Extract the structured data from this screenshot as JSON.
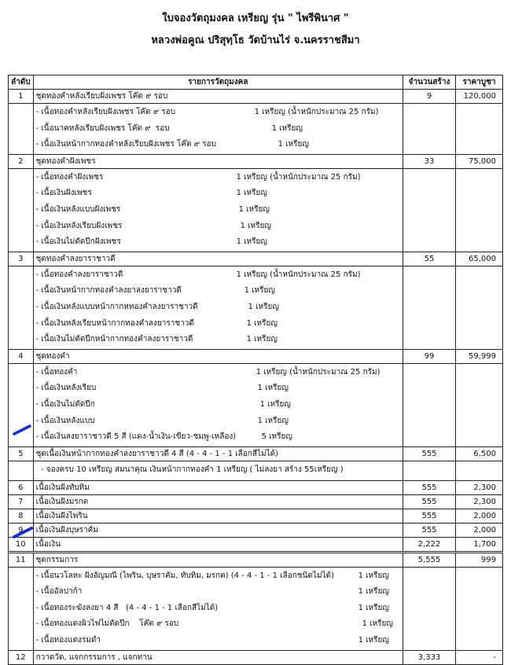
{
  "title": "ใบจองวัตถุมงคล เหรียญ รุ่น \" ไพรีพินาศ \"",
  "subtitle": "หลวงพ่อคูณ ปริสุทฺโธ วัดบ้านไร่ จ.นครราชสีมา",
  "headers": {
    "no": "ลำดับ",
    "item": "รายการวัตถุมงคล",
    "qty": "จำนวนสร้าง",
    "price": "ราคาบูชา"
  },
  "pen_color": "#1a2fd0",
  "rows": [
    {
      "no": "1",
      "name": "ชุดทองคำหลังเรียบฝังเพชร โค๊ต ๙ รอบ",
      "qty": "9",
      "price": "120,000",
      "subs": [
        {
          "text": "- เนื้อทองคำหลังเรียบฝังเพชร โค๊ต ๙ รอบ",
          "amount": "1 เหรียญ  (น้ำหนักประมาณ 25 กรัม)"
        },
        {
          "text": "- เนื้อนาคหลังเรียบฝังเพชร โค๊ต ๙  รอบ",
          "amount": "1 เหรียญ"
        },
        {
          "text": "- เนื้อเงินหน้ากากทองคำหลังเรียบฝังเพชร โค๊ต ๙ รอบ",
          "amount": "1 เหรียญ"
        }
      ]
    },
    {
      "no": "2",
      "name": "ชุดทองคำฝังเพชร",
      "qty": "33",
      "price": "75,000",
      "subs": [
        {
          "text": "- เนื้อทองคำฝังเพชร",
          "amount": "1  เหรียญ (น้ำหนักประมาณ 25 กรัม)"
        },
        {
          "text": "- เนื้อเงินฝังเพชร",
          "amount": "1 เหรียญ"
        },
        {
          "text": "- เนื้อเงินหลังแบบฝังเพชร",
          "amount": "1 เหรียญ"
        },
        {
          "text": "- เนื้อเงินหลังเรียบฝังเพชร",
          "amount": "1 เหรียญ"
        },
        {
          "text": "- เนื้อเงินไม่ตัดปีกฝังเพชร",
          "amount": "1 เหรียญ"
        }
      ]
    },
    {
      "no": "3",
      "name": "ชุดทองคำลงยาราชาวดี",
      "qty": "55",
      "price": "65,000",
      "subs": [
        {
          "text": "- เนื้อทองคำลงยาราชาวดี",
          "amount": "1 เหรียญ (น้ำหนักประมาณ 25 กรัม)"
        },
        {
          "text": "- เนื้อเงินหน้ากากทองคำลงยาลงยาราชาวดี",
          "amount": "1 เหรียญ"
        },
        {
          "text": "- เนื้อเงินหลังแบบหน้ากากหทองคำลงยาราชาวดี",
          "amount": "1 เหรียญ"
        },
        {
          "text": "- เนื้อเงินหลังเรียบหน้ากากทองคำลงยาราชาวดี",
          "amount": "1 เหรียญ"
        },
        {
          "text": "- เนื้อเงินไม่ตัดปีกหน้ากากทองคำลงยาราชาวดี",
          "amount": "1 เหรียญ"
        }
      ]
    },
    {
      "no": "4",
      "name": "ชุดทองคำ",
      "qty": "99",
      "price": "59,999",
      "subs": [
        {
          "text": "- เนื้อทองคำ",
          "amount": "1 เหรียญ (น้ำหนักประมาณ 25 กรัม)"
        },
        {
          "text": "- เนื้อเงินหลังเรียบ",
          "amount": "1 เหรียญ"
        },
        {
          "text": "- เนื้อเงินไม่ตัดปีก",
          "amount": "1 เหรียญ"
        },
        {
          "text": "- เนื้อเงินหลังแบบ",
          "amount": "1 เหรียญ"
        },
        {
          "text": "- เนื้อเงินลงยาราชาวดี 5 สี (แดง-น้ำเงิน-เขียว-ชมพู-เหลือง)",
          "amount": "5 เหรียญ"
        }
      ]
    },
    {
      "no": "5",
      "name": "ชุดเนื้อเงินหน้ากากทองคำลงยาราชาวดี  4 สี  (4 - 4 - 1 - 1 เลือกสีไม่ได้)",
      "qty": "555",
      "price": "6,500",
      "subs": [
        {
          "text": "  - จองครบ 10 เหรียญ สมนาคุณ เงินหน้ากากทองคำ 1 เหรียญ ( ไม่ลงยา สร้าง 55เหรียญ )",
          "amount": ""
        }
      ]
    },
    {
      "no": "6",
      "name": "เนื้อเงินฝังทับทิม",
      "qty": "555",
      "price": "2,300",
      "subs": []
    },
    {
      "no": "7",
      "name": "เนื้อเงินฝังมรกต",
      "qty": "555",
      "price": "2,300",
      "subs": []
    },
    {
      "no": "8",
      "name": "เนื้อเงินฝังไพริน",
      "qty": "555",
      "price": "2,000",
      "subs": []
    },
    {
      "no": "9",
      "name": "เนื้อเงินฝังบุษราคัม",
      "qty": "555",
      "price": "2,000",
      "subs": []
    },
    {
      "no": "10",
      "name": "เนื้อเงิน",
      "qty": "2,222",
      "price": "1,700",
      "subs": []
    },
    {
      "no": "11",
      "name": "ชุดกรรมการ",
      "qty": "5,555",
      "price": "999",
      "subs": [
        {
          "text": "- เนื้อนวโลหะ ฝังอัญมณี (ไพริน, บุษราคัม, ทับทิม, มรกต) (4 - 4 - 1 - 1 เลือกชนิดไม่ได้)",
          "amount": "1 เหรียญ"
        },
        {
          "text": "- เนื้ออัลปาก้า",
          "amount": "1 เหรียญ"
        },
        {
          "text": "- เนื้อทองระฆังลงยา 4 สี   (4 - 4 - 1 - 1 เลือกสีไม่ได้)",
          "amount": "1 เหรียญ"
        },
        {
          "text": "- เนื้อทองแดงผิวไฟไม่ตัดปีก    โค๊ต ๙ รอบ",
          "amount": "1 เหรียญ"
        },
        {
          "text": "- เนื้อทองแดงรมดำ",
          "amount": "1 เหรียญ"
        }
      ]
    },
    {
      "no": "12",
      "name": "กวาดวัด, แจกกรรมการ , แจกทาน",
      "qty": "3,333",
      "price": "-",
      "subs": []
    }
  ]
}
